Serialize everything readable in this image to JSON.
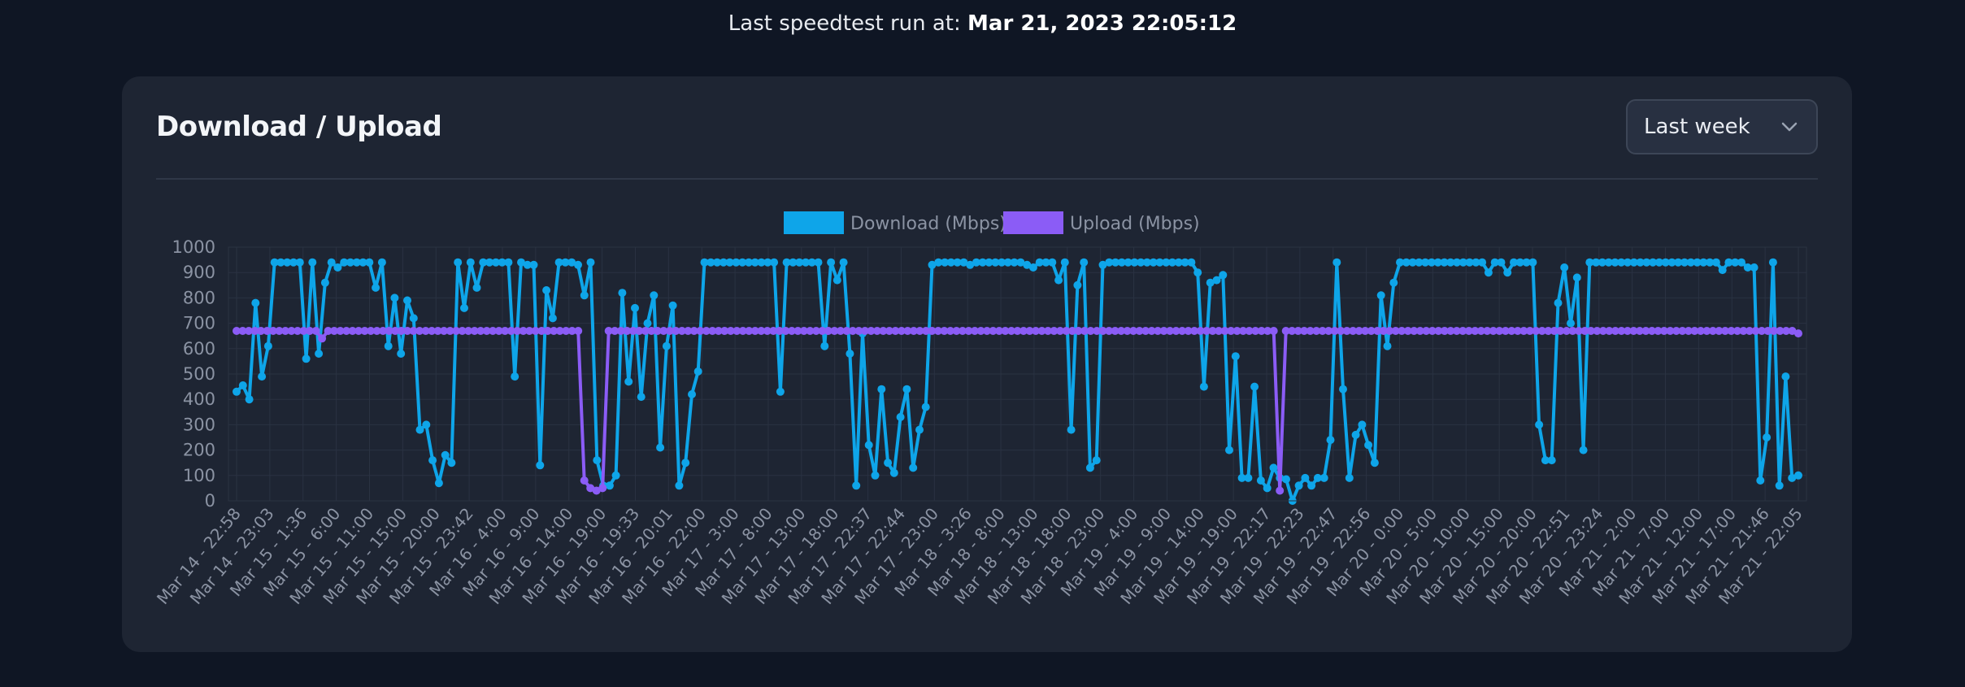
{
  "header": {
    "prefix": "Last speedtest run at: ",
    "timestamp": "Mar 21, 2023 22:05:12"
  },
  "card": {
    "title": "Download / Upload"
  },
  "range_select": {
    "value": "Last week"
  },
  "colors": {
    "download": "#0ea5e9",
    "upload": "#8b5cf6",
    "grid": "#2a3242",
    "tick": "#8b93a3"
  },
  "chart_data": {
    "type": "line",
    "legend": [
      "Download (Mbps)",
      "Upload (Mbps)"
    ],
    "legend_position": "top",
    "ylim": [
      0,
      1000
    ],
    "yticks": [
      0,
      100,
      200,
      300,
      400,
      500,
      600,
      700,
      800,
      900,
      1000
    ],
    "grid": true,
    "xtick_labels": [
      "Mar 14 - 22:58",
      "Mar 14 - 23:03",
      "Mar 15 - 1:36",
      "Mar 15 - 6:00",
      "Mar 15 - 11:00",
      "Mar 15 - 15:00",
      "Mar 15 - 20:00",
      "Mar 15 - 23:42",
      "Mar 16 - 4:00",
      "Mar 16 - 9:00",
      "Mar 16 - 14:00",
      "Mar 16 - 19:00",
      "Mar 16 - 19:33",
      "Mar 16 - 20:01",
      "Mar 16 - 22:00",
      "Mar 17 - 3:00",
      "Mar 17 - 8:00",
      "Mar 17 - 13:00",
      "Mar 17 - 18:00",
      "Mar 17 - 22:37",
      "Mar 17 - 22:44",
      "Mar 17 - 23:00",
      "Mar 18 - 3:26",
      "Mar 18 - 8:00",
      "Mar 18 - 13:00",
      "Mar 18 - 18:00",
      "Mar 18 - 23:00",
      "Mar 19 - 4:00",
      "Mar 19 - 9:00",
      "Mar 19 - 14:00",
      "Mar 19 - 19:00",
      "Mar 19 - 22:17",
      "Mar 19 - 22:23",
      "Mar 19 - 22:47",
      "Mar 19 - 22:56",
      "Mar 20 - 0:00",
      "Mar 20 - 5:00",
      "Mar 20 - 10:00",
      "Mar 20 - 15:00",
      "Mar 20 - 20:00",
      "Mar 20 - 22:51",
      "Mar 20 - 23:24",
      "Mar 21 - 2:00",
      "Mar 21 - 7:00",
      "Mar 21 - 12:00",
      "Mar 21 - 17:00",
      "Mar 21 - 21:46",
      "Mar 21 - 22:05"
    ],
    "series": [
      {
        "name": "Download (Mbps)",
        "values": [
          430,
          455,
          400,
          780,
          490,
          610,
          940,
          940,
          940,
          940,
          940,
          560,
          940,
          580,
          860,
          940,
          920,
          940,
          940,
          940,
          940,
          940,
          840,
          940,
          610,
          800,
          580,
          790,
          720,
          280,
          300,
          160,
          70,
          180,
          150,
          940,
          760,
          940,
          840,
          940,
          940,
          940,
          940,
          940,
          490,
          940,
          930,
          930,
          140,
          830,
          720,
          940,
          940,
          940,
          930,
          810,
          940,
          160,
          60,
          60,
          100,
          820,
          470,
          760,
          410,
          700,
          810,
          210,
          610,
          770,
          60,
          150,
          420,
          510,
          940,
          940,
          940,
          940,
          940,
          940,
          940,
          940,
          940,
          940,
          940,
          940,
          430,
          940,
          940,
          940,
          940,
          940,
          940,
          610,
          940,
          870,
          940,
          580,
          60,
          660,
          220,
          100,
          440,
          150,
          110,
          330,
          440,
          130,
          280,
          370,
          930,
          940,
          940,
          940,
          940,
          940,
          930,
          940,
          940,
          940,
          940,
          940,
          940,
          940,
          940,
          930,
          920,
          940,
          940,
          940,
          870,
          940,
          280,
          850,
          940,
          130,
          160,
          930,
          940,
          940,
          940,
          940,
          940,
          940,
          940,
          940,
          940,
          940,
          940,
          940,
          940,
          940,
          900,
          450,
          860,
          870,
          890,
          200,
          570,
          90,
          90,
          450,
          80,
          50,
          130,
          90,
          85,
          0,
          60,
          90,
          60,
          90,
          90,
          240,
          940,
          440,
          90,
          260,
          300,
          220,
          150,
          810,
          610,
          860,
          940,
          940,
          940,
          940,
          940,
          940,
          940,
          940,
          940,
          940,
          940,
          940,
          940,
          940,
          900,
          940,
          940,
          900,
          940,
          940,
          940,
          940,
          300,
          160,
          160,
          780,
          920,
          700,
          880,
          200,
          940,
          940,
          940,
          940,
          940,
          940,
          940,
          940,
          940,
          940,
          940,
          940,
          940,
          940,
          940,
          940,
          940,
          940,
          940,
          940,
          940,
          910,
          940,
          940,
          940,
          920,
          920,
          80,
          250,
          940,
          60,
          490,
          90,
          100
        ],
        "color": "#0ea5e9"
      },
      {
        "name": "Upload (Mbps)",
        "values": [
          670,
          670,
          670,
          670,
          670,
          670,
          670,
          670,
          670,
          670,
          670,
          670,
          670,
          670,
          640,
          670,
          670,
          670,
          670,
          670,
          670,
          670,
          670,
          670,
          670,
          670,
          670,
          670,
          670,
          670,
          670,
          670,
          670,
          670,
          670,
          670,
          670,
          670,
          670,
          670,
          670,
          670,
          670,
          670,
          670,
          670,
          670,
          670,
          670,
          670,
          670,
          670,
          670,
          670,
          670,
          670,
          670,
          80,
          50,
          40,
          50,
          670,
          670,
          670,
          670,
          670,
          670,
          670,
          670,
          670,
          670,
          670,
          670,
          670,
          670,
          670,
          670,
          670,
          670,
          670,
          670,
          670,
          670,
          670,
          670,
          670,
          670,
          670,
          670,
          670,
          670,
          670,
          670,
          670,
          670,
          670,
          670,
          670,
          670,
          670,
          670,
          670,
          670,
          670,
          670,
          670,
          670,
          670,
          670,
          670,
          670,
          670,
          670,
          670,
          670,
          670,
          670,
          670,
          670,
          670,
          670,
          670,
          670,
          670,
          670,
          670,
          670,
          670,
          670,
          670,
          670,
          670,
          670,
          670,
          670,
          670,
          670,
          670,
          670,
          670,
          670,
          670,
          670,
          670,
          670,
          670,
          670,
          670,
          670,
          670,
          670,
          670,
          670,
          670,
          670,
          670,
          670,
          670,
          670,
          670,
          670,
          670,
          670,
          670,
          670,
          670,
          670,
          670,
          670,
          670,
          670,
          40,
          670,
          670,
          670,
          670,
          670,
          670,
          670,
          670,
          670,
          670,
          670,
          670,
          670,
          670,
          670,
          670,
          670,
          670,
          670,
          670,
          670,
          670,
          670,
          670,
          670,
          670,
          670,
          670,
          670,
          670,
          670,
          670,
          670,
          670,
          670,
          670,
          670,
          670,
          670,
          670,
          670,
          670,
          670,
          670,
          670,
          670,
          670,
          670,
          670,
          670,
          670,
          670,
          670,
          670,
          670,
          670,
          670,
          670,
          670,
          670,
          670,
          670,
          670,
          670,
          670,
          670,
          670,
          670,
          670,
          670,
          670,
          670,
          670,
          670,
          670,
          670,
          670,
          670,
          670,
          670,
          670,
          670,
          670,
          670,
          660
        ],
        "color": "#8b5cf6"
      }
    ]
  }
}
